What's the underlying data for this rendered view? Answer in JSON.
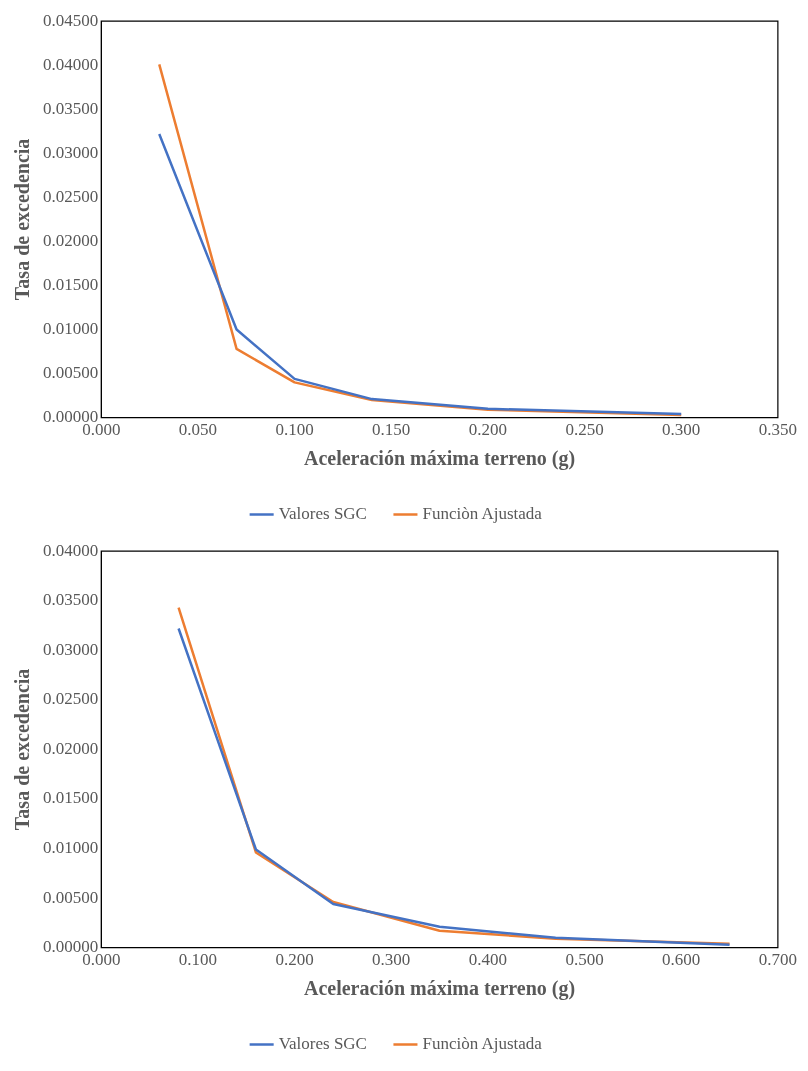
{
  "chart_data": [
    {
      "type": "line",
      "xlabel": "Aceleración máxima terreno (g)",
      "ylabel": "Tasa de excedencia",
      "legend": "bottom",
      "grid": false,
      "marker": "none",
      "series": [
        {
          "name": "Valores SGC",
          "color": "#4472c4",
          "x": [
            0.03,
            0.07,
            0.1,
            0.14,
            0.2,
            0.3
          ],
          "values": [
            0.0322,
            0.01,
            0.0044,
            0.0021,
            0.001,
            0.0004
          ]
        },
        {
          "name": "Funciòn Ajustada",
          "color": "#ed7d31",
          "x": [
            0.03,
            0.07,
            0.1,
            0.14,
            0.2,
            0.3
          ],
          "values": [
            0.0401,
            0.0078,
            0.004,
            0.002,
            0.0009,
            0.0003
          ]
        }
      ],
      "xlim": [
        0,
        0.35
      ],
      "xticks": [
        {
          "value": 0,
          "label": "0.000"
        },
        {
          "value": 0.05,
          "label": "0.050"
        },
        {
          "value": 0.1,
          "label": "0.100"
        },
        {
          "value": 0.15,
          "label": "0.150"
        },
        {
          "value": 0.2,
          "label": "0.200"
        },
        {
          "value": 0.25,
          "label": "0.250"
        },
        {
          "value": 0.3,
          "label": "0.300"
        },
        {
          "value": 0.35,
          "label": "0.350"
        }
      ],
      "ylim": [
        0,
        0.045
      ],
      "yticks": [
        {
          "value": 0,
          "label": "0.00000"
        },
        {
          "value": 0.005,
          "label": "0.00500"
        },
        {
          "value": 0.01,
          "label": "0.01000"
        },
        {
          "value": 0.015,
          "label": "0.01500"
        },
        {
          "value": 0.02,
          "label": "0.02000"
        },
        {
          "value": 0.025,
          "label": "0.02500"
        },
        {
          "value": 0.03,
          "label": "0.03000"
        },
        {
          "value": 0.035,
          "label": "0.03500"
        },
        {
          "value": 0.04,
          "label": "0.04000"
        },
        {
          "value": 0.045,
          "label": "0.04500"
        }
      ]
    },
    {
      "type": "line",
      "xlabel": "Aceleración máxima terreno (g)",
      "ylabel": "Tasa de excedencia",
      "legend": "bottom",
      "grid": false,
      "marker": "none",
      "series": [
        {
          "name": "Valores SGC",
          "color": "#4472c4",
          "x": [
            0.08,
            0.16,
            0.24,
            0.35,
            0.47,
            0.65
          ],
          "values": [
            0.0322,
            0.0099,
            0.0044,
            0.0021,
            0.001,
            0.0003
          ]
        },
        {
          "name": "Funciòn Ajustada",
          "color": "#ed7d31",
          "x": [
            0.08,
            0.16,
            0.24,
            0.35,
            0.47,
            0.65
          ],
          "values": [
            0.0343,
            0.0096,
            0.0046,
            0.0017,
            0.0009,
            0.0004
          ]
        }
      ],
      "xlim": [
        0,
        0.7
      ],
      "xticks": [
        {
          "value": 0,
          "label": "0.000"
        },
        {
          "value": 0.1,
          "label": "0.100"
        },
        {
          "value": 0.2,
          "label": "0.200"
        },
        {
          "value": 0.3,
          "label": "0.300"
        },
        {
          "value": 0.4,
          "label": "0.400"
        },
        {
          "value": 0.5,
          "label": "0.500"
        },
        {
          "value": 0.6,
          "label": "0.600"
        },
        {
          "value": 0.7,
          "label": "0.700"
        }
      ],
      "ylim": [
        0,
        0.04
      ],
      "yticks": [
        {
          "value": 0,
          "label": "0.00000"
        },
        {
          "value": 0.005,
          "label": "0.00500"
        },
        {
          "value": 0.01,
          "label": "0.01000"
        },
        {
          "value": 0.015,
          "label": "0.01500"
        },
        {
          "value": 0.02,
          "label": "0.02000"
        },
        {
          "value": 0.025,
          "label": "0.02500"
        },
        {
          "value": 0.03,
          "label": "0.03000"
        },
        {
          "value": 0.035,
          "label": "0.03500"
        },
        {
          "value": 0.04,
          "label": "0.04000"
        }
      ]
    }
  ]
}
